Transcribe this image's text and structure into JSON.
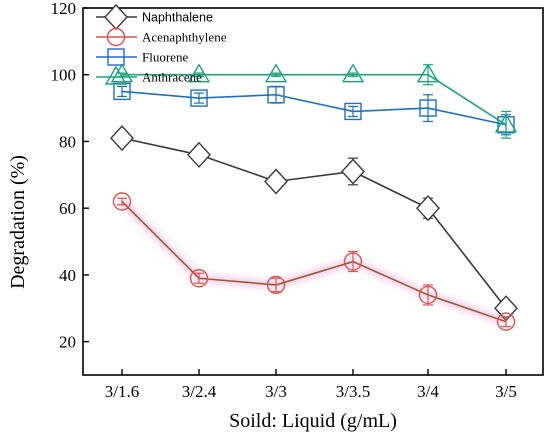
{
  "chart_data": {
    "type": "line",
    "title": "",
    "xlabel": "Soild: Liquid (g/mL)",
    "ylabel": "Degradation (%)",
    "categories": [
      "3/1.6",
      "3/2.4",
      "3/3",
      "3/3.5",
      "3/4",
      "3/5"
    ],
    "ylim": [
      10,
      120
    ],
    "yticks": [
      20,
      40,
      60,
      80,
      100,
      120
    ],
    "grid": false,
    "legend_position": "top-left",
    "series": [
      {
        "name": "Naphthalene",
        "marker": "diamond",
        "color": "#3a3a3a",
        "values": [
          81,
          76,
          68,
          71,
          60,
          30
        ],
        "errors": [
          1.5,
          1.5,
          1.5,
          4,
          3,
          1.5
        ]
      },
      {
        "name": "Acenaphthylene",
        "marker": "circle",
        "color": "#d9534f",
        "line_color": "#9c5a2c",
        "values": [
          62,
          39,
          37,
          44,
          34,
          26
        ],
        "errors": [
          1,
          1.5,
          2,
          3,
          3,
          1.5
        ]
      },
      {
        "name": "Fluorene",
        "marker": "square",
        "color": "#1e6fbf",
        "values": [
          95,
          93,
          94,
          89,
          90,
          85
        ],
        "errors": [
          1.5,
          1.5,
          2.5,
          1.5,
          4,
          3
        ]
      },
      {
        "name": "Anthracene",
        "marker": "triangle",
        "color": "#1ea37a",
        "values": [
          100,
          100,
          100,
          100,
          100,
          85
        ],
        "errors": [
          0.5,
          0.5,
          0.5,
          0.5,
          3,
          4
        ]
      }
    ]
  }
}
